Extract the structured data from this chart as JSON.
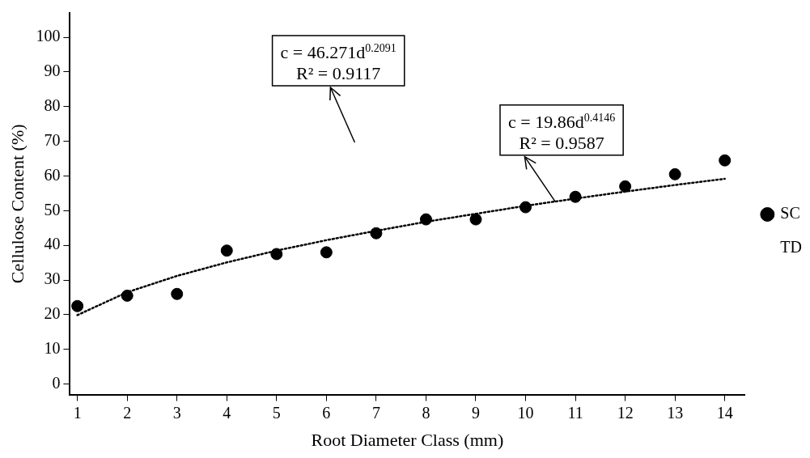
{
  "chart_data": {
    "type": "scatter",
    "xlabel": "Root Diameter Class (mm)",
    "ylabel": "Cellulose Content (%)",
    "x": [
      1,
      2,
      3,
      4,
      5,
      6,
      7,
      8,
      9,
      10,
      11,
      12,
      13,
      14
    ],
    "series": [
      {
        "name": "SC",
        "color": "#000000",
        "values": [
          22.5,
          25.5,
          26,
          38.5,
          37.5,
          38,
          43.5,
          47.5,
          47.5,
          51,
          54,
          57,
          60.5,
          64.5
        ]
      },
      {
        "name": "TD",
        "values": [
          null,
          null,
          null,
          null,
          null,
          null,
          null,
          null,
          null,
          null,
          null,
          null,
          null,
          null
        ]
      },
      {
        "type": "line",
        "color": "#000000",
        "line_style": "dotted",
        "marker": "none",
        "x": [
          1,
          2,
          3,
          4,
          5,
          6,
          7,
          8,
          9,
          10,
          11,
          12,
          13,
          14
        ],
        "values": [
          19.9,
          26.5,
          31.2,
          35.1,
          38.5,
          41.5,
          44.2,
          46.8,
          49.1,
          51.4,
          53.5,
          55.5,
          57.4,
          59.2
        ]
      }
    ],
    "annotations": [
      "c = 46.271d$^{0.2091}$\nR² = 0.9117",
      {
        "text": "c = 19.86d$^{0.4146}$\nR² = 0.9587",
        "x": 10.6,
        "y": 52.5
      }
    ],
    "xlim": [
      0.85,
      14.4
    ],
    "xticks": [
      1,
      2,
      3,
      4,
      5,
      6,
      7,
      8,
      9,
      10,
      11,
      12,
      13,
      14
    ],
    "ylim": [
      -3,
      107
    ],
    "yticks": [
      0,
      10,
      20,
      30,
      40,
      50,
      60,
      70,
      80,
      90,
      100
    ],
    "grid": false,
    "legend": "right",
    "marker": "circle"
  }
}
